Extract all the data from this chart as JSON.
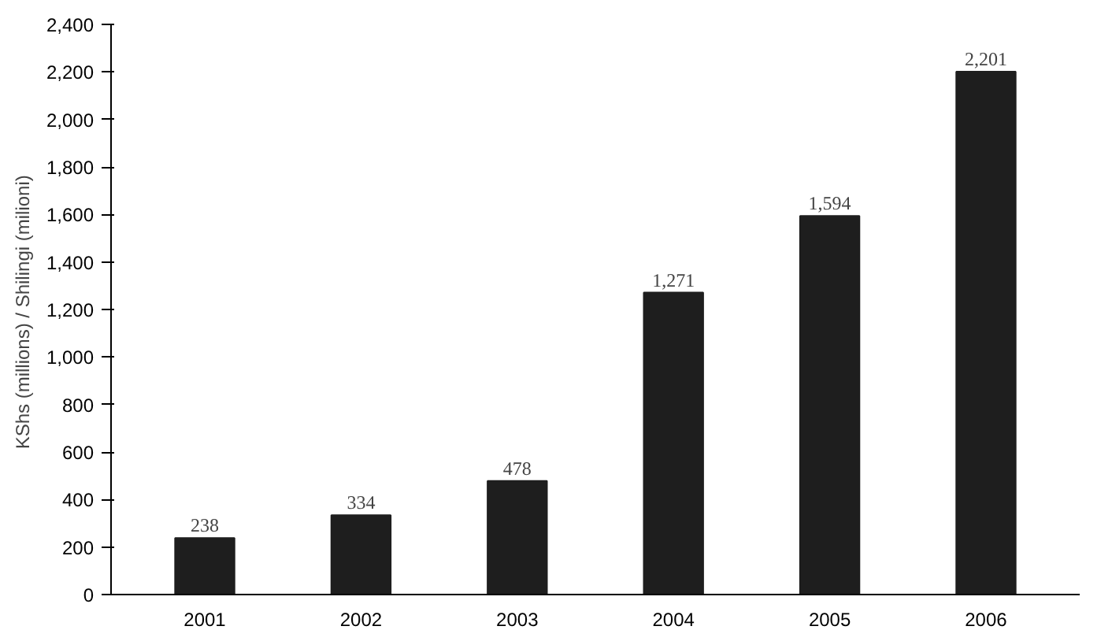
{
  "chart_data": {
    "type": "bar",
    "ylabel": "KShs (millions)  / Shilingi (milioni)",
    "categories": [
      "2001",
      "2002",
      "2003",
      "2004",
      "2005",
      "2006"
    ],
    "values": [
      238,
      334,
      478,
      1271,
      1594,
      2201
    ],
    "color": "#1e1e1e",
    "ylim": [
      0,
      2400
    ],
    "yticks": [
      {
        "value": 0,
        "label": "0"
      },
      {
        "value": 200,
        "label": "200"
      },
      {
        "value": 400,
        "label": "400"
      },
      {
        "value": 600,
        "label": "600"
      },
      {
        "value": 800,
        "label": "800"
      },
      {
        "value": 1000,
        "label": "1,000"
      },
      {
        "value": 1200,
        "label": "1,200"
      },
      {
        "value": 1400,
        "label": "1,400"
      },
      {
        "value": 1600,
        "label": "1,600"
      },
      {
        "value": 1800,
        "label": "1,800"
      },
      {
        "value": 2000,
        "label": "2,000"
      },
      {
        "value": 2200,
        "label": "2,200"
      },
      {
        "value": 2400,
        "label": "2,400"
      }
    ],
    "value_labels": [
      "238",
      "334",
      "478",
      "1,271",
      "1,594",
      "2,201"
    ],
    "grid": false
  }
}
